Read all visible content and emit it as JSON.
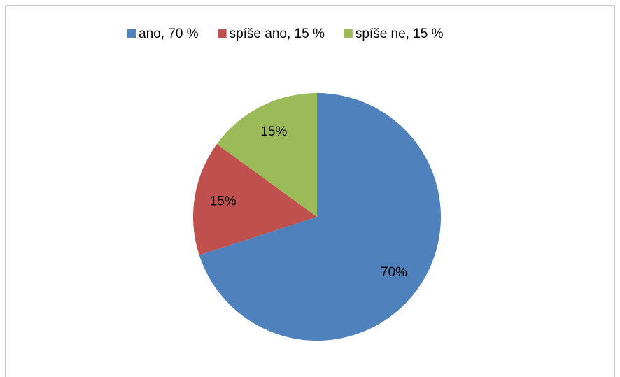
{
  "chart_data": {
    "type": "pie",
    "categories": [
      "ano, 70 %",
      "spíše ano, 15 %",
      "spíše ne, 15 %"
    ],
    "values": [
      70,
      15,
      15
    ],
    "value_labels": [
      "70%",
      "15%",
      "15%"
    ],
    "colors": [
      "#4f81bd",
      "#c0504d",
      "#9bbb59"
    ],
    "legend": "top"
  }
}
